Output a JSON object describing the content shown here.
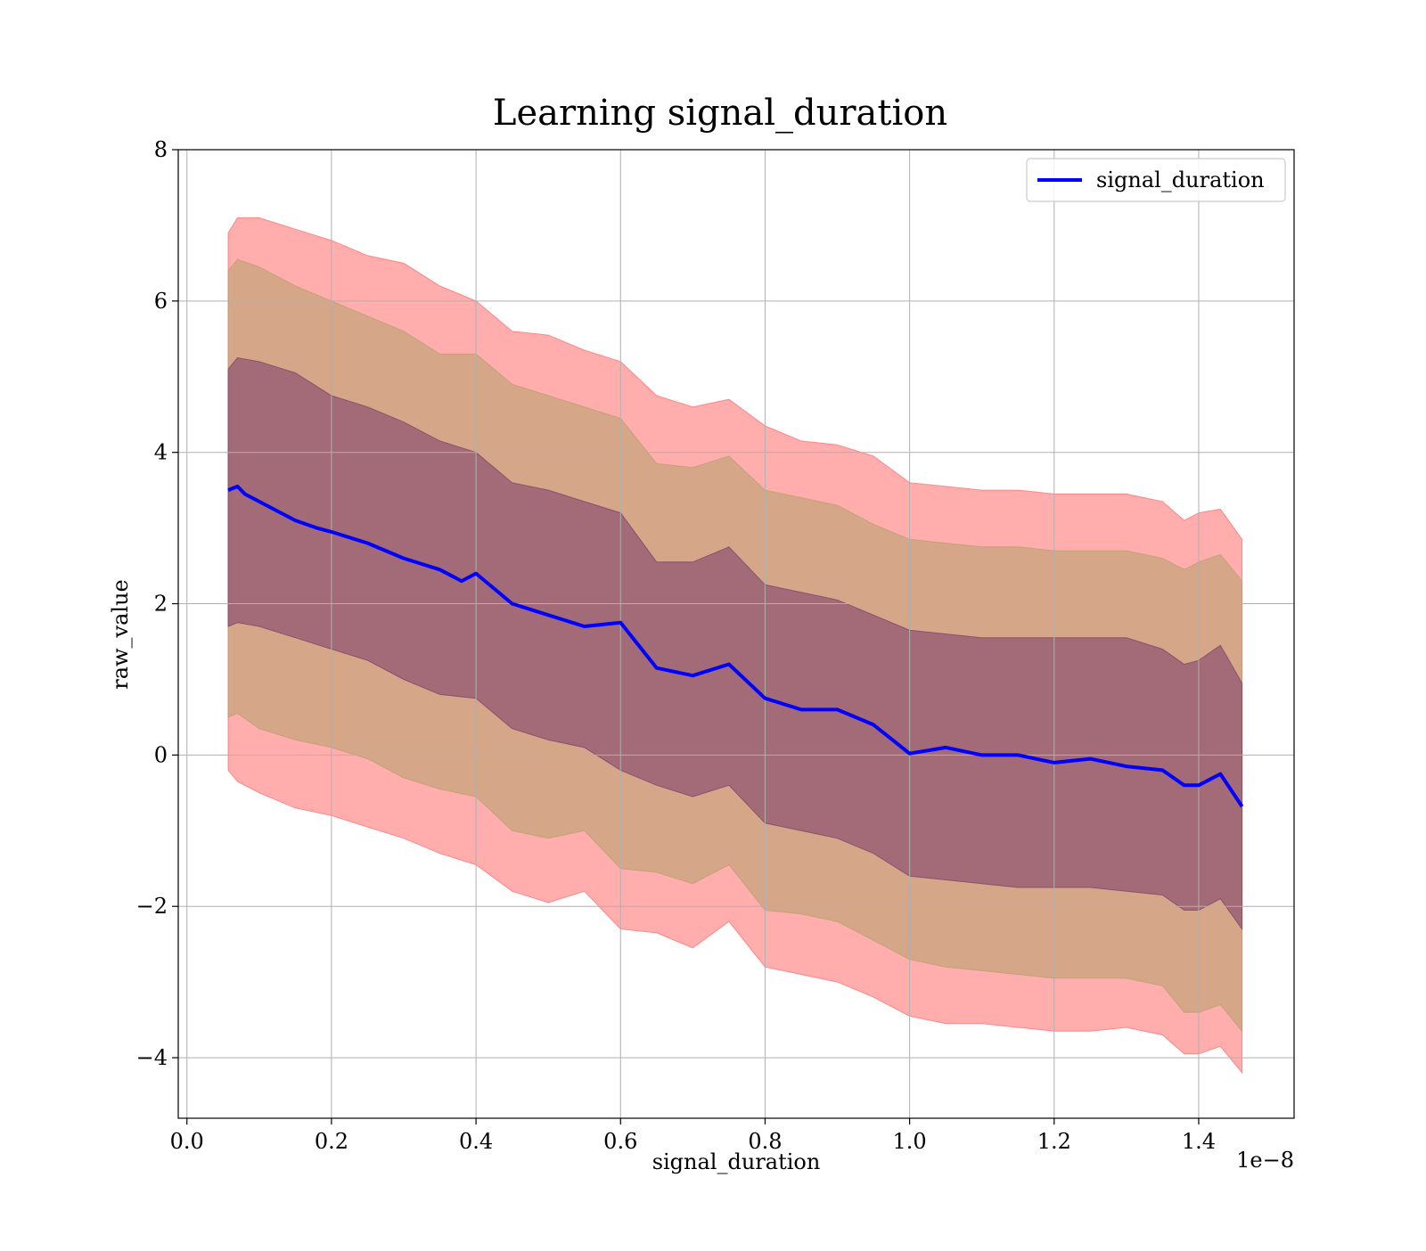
{
  "chart_data": {
    "type": "line",
    "title": "Learning signal_duration",
    "xlabel": "signal_duration",
    "ylabel": "raw_value",
    "x_offset_label": "1e−8",
    "xlim": [
      -0.012,
      1.532
    ],
    "ylim": [
      -4.8,
      8.0
    ],
    "x_ticks": [
      0.0,
      0.2,
      0.4,
      0.6,
      0.8,
      1.0,
      1.2,
      1.4
    ],
    "x_tick_labels": [
      "0.0",
      "0.2",
      "0.4",
      "0.6",
      "0.8",
      "1.0",
      "1.2",
      "1.4"
    ],
    "y_ticks": [
      -4,
      -2,
      0,
      2,
      4,
      6,
      8
    ],
    "y_tick_labels": [
      "−4",
      "−2",
      "0",
      "2",
      "4",
      "6",
      "8"
    ],
    "grid": true,
    "legend_position": "top-right",
    "series": [
      {
        "name": "signal_duration",
        "color": "#0000ff",
        "x": [
          0.057,
          0.07,
          0.08,
          0.1,
          0.12,
          0.15,
          0.18,
          0.2,
          0.25,
          0.3,
          0.35,
          0.38,
          0.4,
          0.45,
          0.5,
          0.55,
          0.6,
          0.65,
          0.7,
          0.75,
          0.8,
          0.85,
          0.9,
          0.95,
          1.0,
          1.05,
          1.1,
          1.15,
          1.2,
          1.25,
          1.3,
          1.35,
          1.38,
          1.4,
          1.43,
          1.46
        ],
        "y": [
          3.5,
          3.55,
          3.45,
          3.35,
          3.25,
          3.1,
          3.0,
          2.95,
          2.8,
          2.6,
          2.45,
          2.3,
          2.4,
          2.0,
          1.85,
          1.7,
          1.75,
          1.15,
          1.05,
          1.2,
          0.75,
          0.6,
          0.6,
          0.4,
          0.02,
          0.1,
          0.0,
          0.0,
          -0.1,
          -0.05,
          -0.15,
          -0.2,
          -0.4,
          -0.4,
          -0.25,
          -0.68
        ]
      }
    ],
    "bands": [
      {
        "color": "#ff6a6a",
        "opacity": 0.55,
        "x": [
          0.057,
          0.07,
          0.1,
          0.15,
          0.2,
          0.25,
          0.3,
          0.35,
          0.4,
          0.45,
          0.5,
          0.55,
          0.6,
          0.65,
          0.7,
          0.75,
          0.8,
          0.85,
          0.9,
          0.95,
          1.0,
          1.05,
          1.1,
          1.15,
          1.2,
          1.25,
          1.3,
          1.35,
          1.38,
          1.4,
          1.43,
          1.46
        ],
        "lower": [
          -0.2,
          -0.35,
          -0.5,
          -0.7,
          -0.8,
          -0.95,
          -1.1,
          -1.3,
          -1.45,
          -1.8,
          -1.95,
          -1.8,
          -2.3,
          -2.35,
          -2.55,
          -2.2,
          -2.8,
          -2.9,
          -3.0,
          -3.2,
          -3.45,
          -3.55,
          -3.55,
          -3.6,
          -3.65,
          -3.65,
          -3.6,
          -3.7,
          -3.95,
          -3.95,
          -3.85,
          -4.2
        ],
        "upper": [
          6.9,
          7.1,
          7.1,
          6.95,
          6.8,
          6.6,
          6.5,
          6.2,
          6.0,
          5.6,
          5.55,
          5.35,
          5.2,
          4.75,
          4.6,
          4.7,
          4.35,
          4.15,
          4.1,
          3.95,
          3.6,
          3.55,
          3.5,
          3.5,
          3.45,
          3.45,
          3.45,
          3.35,
          3.1,
          3.2,
          3.25,
          2.85
        ]
      },
      {
        "color": "#b5a06a",
        "opacity": 0.55,
        "x": [
          0.057,
          0.07,
          0.1,
          0.15,
          0.2,
          0.25,
          0.3,
          0.35,
          0.4,
          0.45,
          0.5,
          0.55,
          0.6,
          0.65,
          0.7,
          0.75,
          0.8,
          0.85,
          0.9,
          0.95,
          1.0,
          1.05,
          1.1,
          1.15,
          1.2,
          1.25,
          1.3,
          1.35,
          1.38,
          1.4,
          1.43,
          1.46
        ],
        "lower": [
          0.5,
          0.55,
          0.35,
          0.2,
          0.1,
          -0.05,
          -0.3,
          -0.45,
          -0.55,
          -1.0,
          -1.1,
          -1.0,
          -1.5,
          -1.55,
          -1.7,
          -1.45,
          -2.05,
          -2.1,
          -2.2,
          -2.45,
          -2.7,
          -2.8,
          -2.85,
          -2.9,
          -2.95,
          -2.95,
          -2.95,
          -3.05,
          -3.4,
          -3.4,
          -3.3,
          -3.65
        ],
        "upper": [
          6.4,
          6.55,
          6.45,
          6.2,
          6.0,
          5.8,
          5.6,
          5.3,
          5.3,
          4.9,
          4.75,
          4.6,
          4.45,
          3.85,
          3.8,
          3.95,
          3.5,
          3.4,
          3.3,
          3.05,
          2.85,
          2.8,
          2.75,
          2.75,
          2.7,
          2.7,
          2.7,
          2.6,
          2.45,
          2.55,
          2.65,
          2.3
        ]
      },
      {
        "color": "#7a3a6a",
        "opacity": 0.55,
        "x": [
          0.057,
          0.07,
          0.1,
          0.15,
          0.2,
          0.25,
          0.3,
          0.35,
          0.4,
          0.45,
          0.5,
          0.55,
          0.6,
          0.65,
          0.7,
          0.75,
          0.8,
          0.85,
          0.9,
          0.95,
          1.0,
          1.05,
          1.1,
          1.15,
          1.2,
          1.25,
          1.3,
          1.35,
          1.38,
          1.4,
          1.43,
          1.46
        ],
        "lower": [
          1.7,
          1.75,
          1.7,
          1.55,
          1.4,
          1.25,
          1.0,
          0.8,
          0.75,
          0.35,
          0.2,
          0.1,
          -0.2,
          -0.4,
          -0.55,
          -0.4,
          -0.9,
          -1.0,
          -1.1,
          -1.3,
          -1.6,
          -1.65,
          -1.7,
          -1.75,
          -1.75,
          -1.75,
          -1.8,
          -1.85,
          -2.05,
          -2.05,
          -1.9,
          -2.3
        ],
        "upper": [
          5.1,
          5.25,
          5.2,
          5.05,
          4.75,
          4.6,
          4.4,
          4.15,
          4.0,
          3.6,
          3.5,
          3.35,
          3.2,
          2.55,
          2.55,
          2.75,
          2.25,
          2.15,
          2.05,
          1.85,
          1.65,
          1.6,
          1.55,
          1.55,
          1.55,
          1.55,
          1.55,
          1.4,
          1.2,
          1.25,
          1.45,
          0.95
        ]
      }
    ]
  }
}
